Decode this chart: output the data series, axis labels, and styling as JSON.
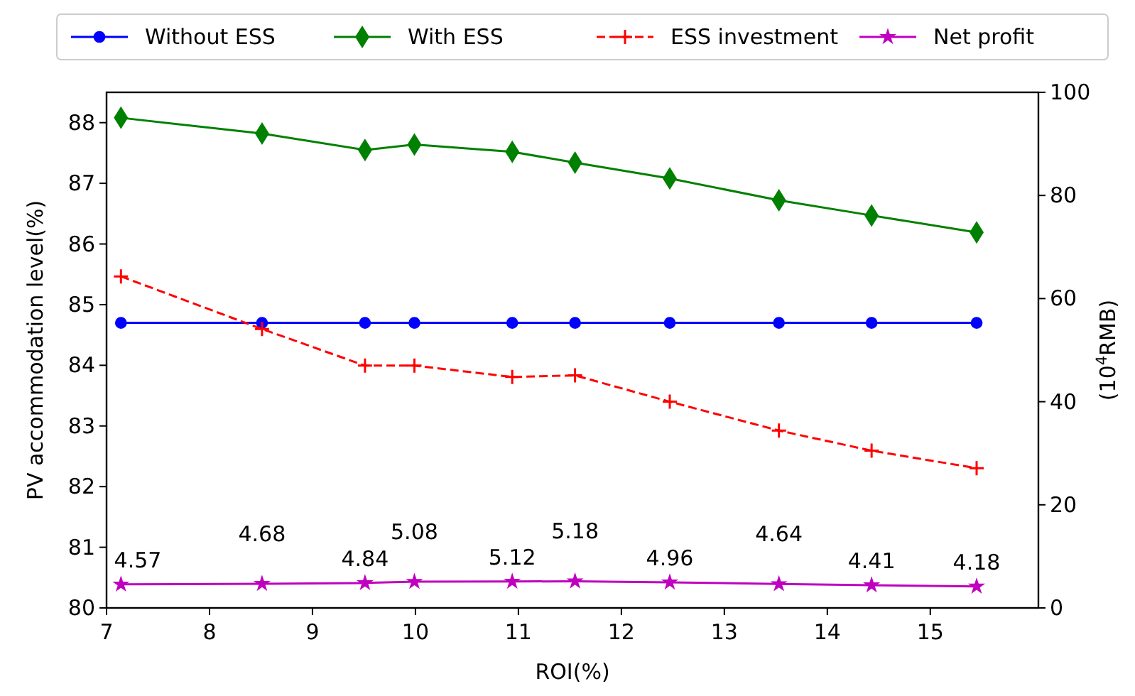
{
  "chart_data": {
    "type": "line",
    "xlabel": "ROI(%)",
    "ylabel": "PV accommodation level(%)",
    "y2label": "(10$^{4}$RMB)",
    "xlim": [
      7,
      16.05
    ],
    "xticks": [
      7,
      8,
      9,
      10,
      11,
      12,
      13,
      14,
      15
    ],
    "ylim": [
      80,
      88.5
    ],
    "yticks": [
      80,
      81,
      82,
      83,
      84,
      85,
      86,
      87,
      88
    ],
    "y2lim": [
      0,
      100
    ],
    "y2ticks": [
      0,
      20,
      40,
      60,
      80,
      100
    ],
    "x": [
      7.14,
      8.51,
      9.51,
      9.99,
      10.94,
      11.55,
      12.47,
      13.53,
      14.43,
      15.45
    ],
    "legend": "top",
    "grid": false,
    "series": [
      {
        "name": "Without ESS",
        "color": "#0000ff",
        "marker": "circle",
        "line_style": "solid",
        "values": [
          84.7,
          84.7,
          84.7,
          84.7,
          84.7,
          84.7,
          84.7,
          84.7,
          84.7,
          84.7
        ]
      },
      {
        "name": "With ESS",
        "color": "#008000",
        "marker": "diamond",
        "line_style": "solid",
        "values": [
          88.08,
          87.82,
          87.55,
          87.64,
          87.52,
          87.34,
          87.08,
          86.72,
          86.47,
          86.19
        ]
      },
      {
        "name": "ESS investment",
        "color": "#ff0000",
        "marker": "cross",
        "line_style": "dashed",
        "axis": "y2",
        "values": [
          64.3,
          54.1,
          47.0,
          47.0,
          44.8,
          45.1,
          40.0,
          34.4,
          30.5,
          27.1
        ]
      },
      {
        "name": "Net profit",
        "color": "#bf00bf",
        "marker": "star",
        "line_style": "solid",
        "axis": "y2",
        "values": [
          4.57,
          4.68,
          4.84,
          5.08,
          5.12,
          5.18,
          4.96,
          4.64,
          4.41,
          4.18
        ],
        "value_labels": [
          "4.57",
          "4.68",
          "4.84",
          "5.08",
          "5.12",
          "5.18",
          "4.96",
          "4.64",
          "4.41",
          "4.18"
        ]
      }
    ]
  }
}
